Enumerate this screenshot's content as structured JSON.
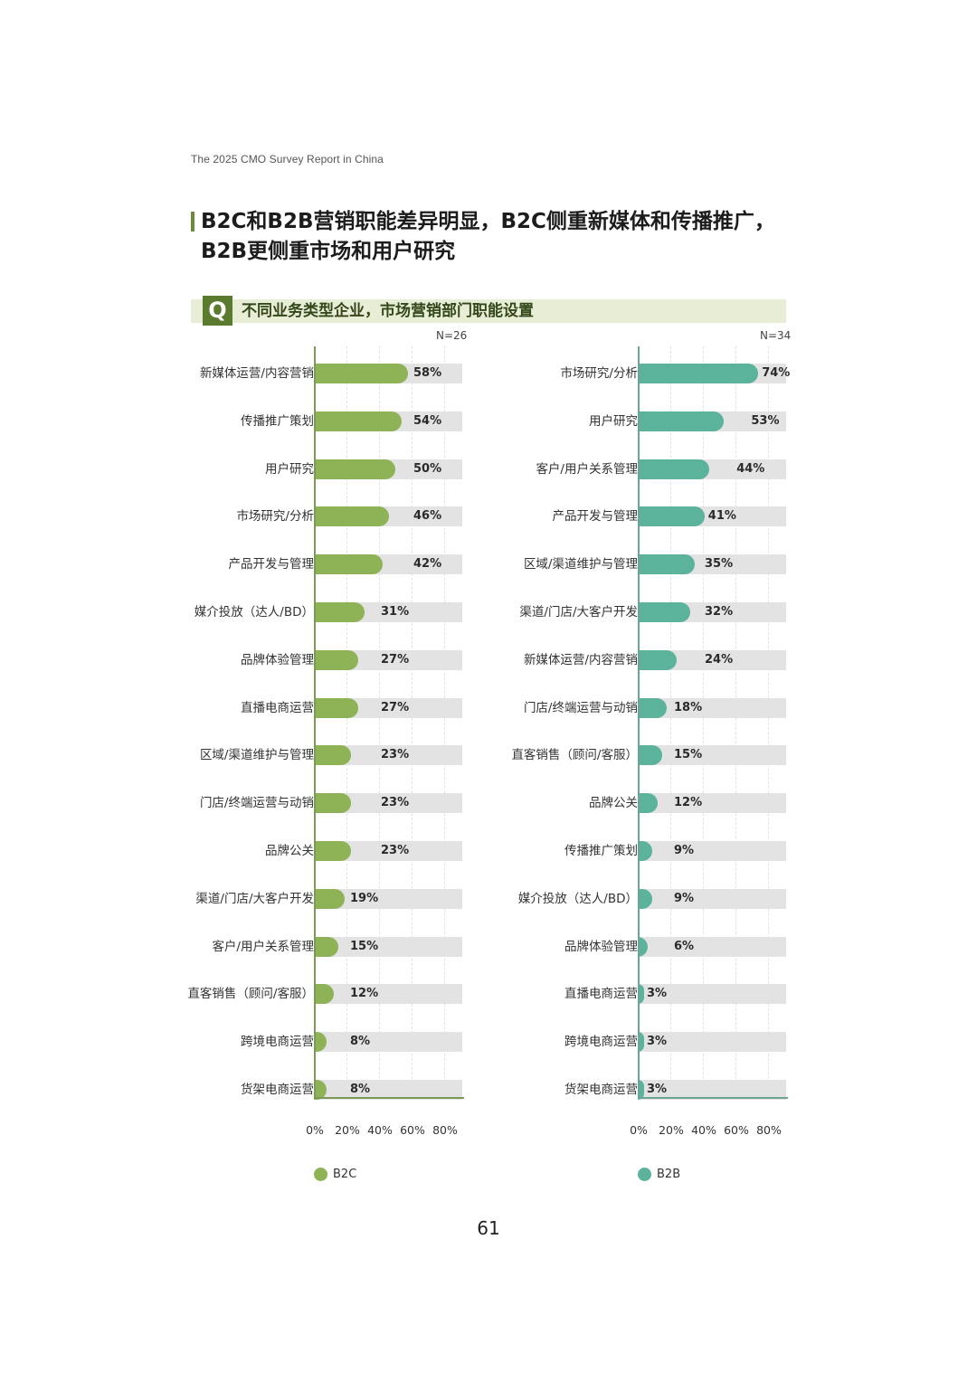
{
  "page": {
    "header": "The 2025 CMO Survey Report in China",
    "title": "B2C和B2B营销职能差异明显，B2C侧重新媒体和传播推广，B2B更侧重市场和用户研究",
    "question_icon": "Q",
    "question": "不同业务类型企业，市场营销部门职能设置",
    "page_number": "61"
  },
  "colors": {
    "b2c": "#8db356",
    "b2b": "#5bb39b",
    "track": "#e3e3e3",
    "accent": "#5a7a2e",
    "banner": "#e8eed6"
  },
  "chart_data": [
    {
      "type": "bar",
      "orientation": "horizontal",
      "title": "不同业务类型企业，市场营销部门职能设置",
      "series_name": "B2C",
      "n_label": "N=26",
      "color": "#8db356",
      "categories": [
        "新媒体运营/内容营销",
        "传播推广策划",
        "用户研究",
        "市场研究/分析",
        "产品开发与管理",
        "媒介投放（达人/BD）",
        "品牌体验管理",
        "直播电商运营",
        "区域/渠道维护与管理",
        "门店/终端运营与动销",
        "品牌公关",
        "渠道/门店/大客户开发",
        "客户/用户关系管理",
        "直客销售（顾问/客服）",
        "跨境电商运营",
        "货架电商运营"
      ],
      "values": [
        58,
        54,
        50,
        46,
        42,
        31,
        27,
        27,
        23,
        23,
        23,
        19,
        15,
        12,
        8,
        8
      ],
      "labels": [
        "58%",
        "54%",
        "50%",
        "46%",
        "42%",
        "31%",
        "27%",
        "27%",
        "23%",
        "23%",
        "23%",
        "19%",
        "15%",
        "12%",
        "8%",
        "8%"
      ],
      "xticks": [
        "0%",
        "20%",
        "40%",
        "60%",
        "80%"
      ],
      "xlim": [
        0,
        91
      ],
      "grid": true,
      "legend": "B2C",
      "legend_position": "bottom"
    },
    {
      "type": "bar",
      "orientation": "horizontal",
      "title": "不同业务类型企业，市场营销部门职能设置",
      "series_name": "B2B",
      "n_label": "N=34",
      "color": "#5bb39b",
      "categories": [
        "市场研究/分析",
        "用户研究",
        "客户/用户关系管理",
        "产品开发与管理",
        "区域/渠道维护与管理",
        "渠道/门店/大客户开发",
        "新媒体运营/内容营销",
        "门店/终端运营与动销",
        "直客销售（顾问/客服）",
        "品牌公关",
        "传播推广策划",
        "媒介投放（达人/BD）",
        "品牌体验管理",
        "直播电商运营",
        "跨境电商运营",
        "货架电商运营"
      ],
      "values": [
        74,
        53,
        44,
        41,
        35,
        32,
        24,
        18,
        15,
        12,
        9,
        9,
        6,
        3,
        3,
        3
      ],
      "labels": [
        "74%",
        "53%",
        "44%",
        "41%",
        "35%",
        "32%",
        "24%",
        "18%",
        "15%",
        "12%",
        "9%",
        "9%",
        "6%",
        "3%",
        "3%",
        "3%"
      ],
      "xticks": [
        "0%",
        "20%",
        "40%",
        "60%",
        "80%"
      ],
      "xlim": [
        0,
        91
      ],
      "grid": true,
      "legend": "B2B",
      "legend_position": "bottom"
    }
  ]
}
